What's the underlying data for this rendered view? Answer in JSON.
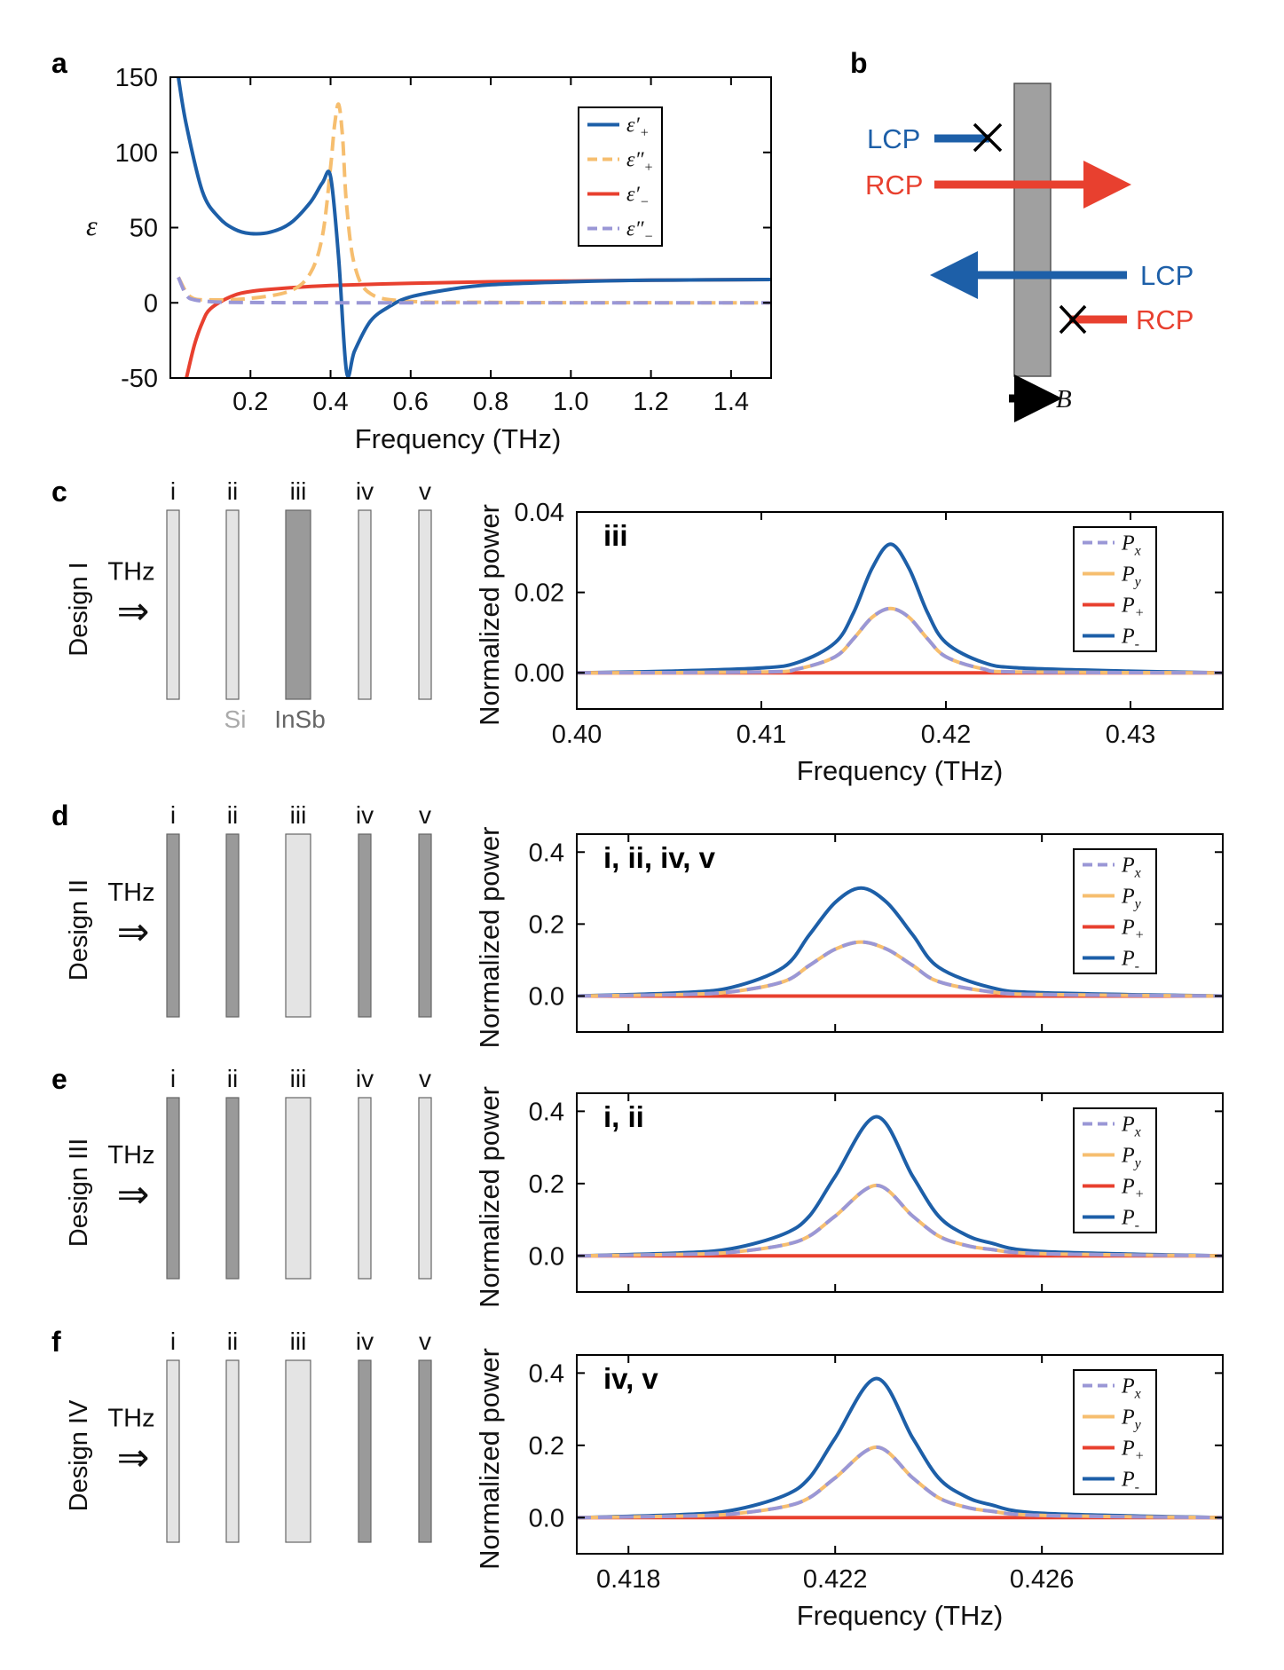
{
  "colors": {
    "blue": "#1d5fa8",
    "orange": "#f6be6f",
    "red": "#e8402f",
    "lavender": "#9a97d6",
    "si": "#e4e4e4",
    "insb": "#9a9a9a",
    "slab_b": "#a0a0a0"
  },
  "panel_a": {
    "letter": "a",
    "xlabel": "Frequency (THz)",
    "ylabel": "ε",
    "xticks": [
      "0.2",
      "0.4",
      "0.6",
      "0.8",
      "1.0",
      "1.2",
      "1.4"
    ],
    "yticks": [
      "150",
      "100",
      "50",
      "0",
      "-50"
    ],
    "legend": [
      {
        "main": "ε′",
        "sub": "+",
        "color": "#1d5fa8",
        "dashed": false
      },
      {
        "main": "ε″",
        "sub": "+",
        "color": "#f6be6f",
        "dashed": true
      },
      {
        "main": "ε′",
        "sub": "−",
        "color": "#e8402f",
        "dashed": false
      },
      {
        "main": "ε″",
        "sub": "−",
        "color": "#9a97d6",
        "dashed": true
      }
    ]
  },
  "panel_b": {
    "letter": "b",
    "lcp": "LCP",
    "rcp": "RCP",
    "field": "B"
  },
  "slabs": {
    "numerals": [
      "i",
      "ii",
      "iii",
      "iv",
      "v"
    ],
    "thz": "THz",
    "arrow": "⇒",
    "si_label": "Si",
    "insb_label": "InSb"
  },
  "rows": [
    {
      "letter": "c",
      "design": "Design I",
      "inset": "iii",
      "materials": [
        "si",
        "si",
        "insb",
        "si",
        "si"
      ]
    },
    {
      "letter": "d",
      "design": "Design II",
      "inset": "i, ii, iv, v",
      "materials": [
        "insb",
        "insb",
        "si",
        "insb",
        "insb"
      ]
    },
    {
      "letter": "e",
      "design": "Design III",
      "inset": "i, ii",
      "materials": [
        "insb",
        "insb",
        "si",
        "si",
        "si"
      ]
    },
    {
      "letter": "f",
      "design": "Design IV",
      "inset": "iv, v",
      "materials": [
        "si",
        "si",
        "si",
        "insb",
        "insb"
      ]
    }
  ],
  "power_axes": {
    "ylabel": "Normalized power",
    "xlabel": "Frequency (THz)",
    "c_xticks": [
      "0.40",
      "0.41",
      "0.42",
      "0.43"
    ],
    "c_yticks": [
      "0.04",
      "0.02",
      "0.00"
    ],
    "def_xticks": [
      "0.418",
      "0.422",
      "0.426"
    ],
    "def_yticks": [
      "0.4",
      "0.2",
      "0.0"
    ],
    "legend": [
      {
        "main": "P",
        "sub": "x",
        "color": "#9a97d6",
        "dashed": true
      },
      {
        "main": "P",
        "sub": "y",
        "color": "#f6be6f",
        "dashed": false
      },
      {
        "main": "P",
        "sub": "+",
        "color": "#e8402f",
        "dashed": false
      },
      {
        "main": "P",
        "sub": "-",
        "color": "#1d5fa8",
        "dashed": false
      }
    ]
  },
  "chart_data": [
    {
      "panel": "a",
      "type": "line",
      "xlabel": "Frequency (THz)",
      "ylabel": "ε",
      "xlim": [
        0.0,
        1.5
      ],
      "ylim": [
        -50,
        150
      ],
      "series": [
        {
          "name": "ε′+",
          "x": [
            0.02,
            0.04,
            0.08,
            0.12,
            0.16,
            0.2,
            0.25,
            0.3,
            0.35,
            0.38,
            0.4,
            0.42,
            0.44,
            0.46,
            0.5,
            0.55,
            0.6,
            0.7,
            0.8,
            1.0,
            1.2,
            1.5
          ],
          "y": [
            150,
            118,
            74,
            57,
            49,
            46,
            47,
            53,
            67,
            80,
            84,
            30,
            -46,
            -32,
            -12,
            -2,
            4,
            9,
            12,
            14,
            15,
            15.5
          ]
        },
        {
          "name": "ε″+",
          "x": [
            0.02,
            0.05,
            0.1,
            0.2,
            0.3,
            0.35,
            0.38,
            0.4,
            0.41,
            0.42,
            0.43,
            0.44,
            0.46,
            0.5,
            0.6,
            0.8,
            1.0,
            1.5
          ],
          "y": [
            17,
            4,
            2,
            3,
            8,
            20,
            45,
            90,
            118,
            132,
            110,
            65,
            25,
            6,
            1,
            0.3,
            0.1,
            0
          ]
        },
        {
          "name": "ε′−",
          "x": [
            0.04,
            0.06,
            0.08,
            0.1,
            0.15,
            0.2,
            0.3,
            0.4,
            0.6,
            0.8,
            1.0,
            1.2,
            1.5
          ],
          "y": [
            -50,
            -28,
            -13,
            -4,
            4,
            7.5,
            10,
            11.5,
            13,
            14,
            14.5,
            15,
            15.5
          ]
        },
        {
          "name": "ε″−",
          "x": [
            0.02,
            0.04,
            0.06,
            0.1,
            0.15,
            0.3,
            0.6,
            1.0,
            1.5
          ],
          "y": [
            17,
            5,
            2,
            0.8,
            0.3,
            0.1,
            0,
            0,
            0
          ]
        }
      ]
    },
    {
      "panel": "c",
      "type": "line",
      "inset": "iii",
      "xlabel": "Frequency (THz)",
      "ylabel": "Normalized power",
      "xlim": [
        0.4,
        0.435
      ],
      "ylim": [
        -0.009,
        0.04
      ],
      "series": [
        {
          "name": "Px",
          "x": [
            0.4,
            0.41,
            0.412,
            0.414,
            0.415,
            0.416,
            0.417,
            0.418,
            0.419,
            0.42,
            0.422,
            0.424,
            0.435
          ],
          "y": [
            0,
            0.0002,
            0.001,
            0.004,
            0.0085,
            0.0138,
            0.016,
            0.0138,
            0.0085,
            0.004,
            0.001,
            0.0002,
            0
          ]
        },
        {
          "name": "Py",
          "x": [
            0.4,
            0.41,
            0.412,
            0.414,
            0.415,
            0.416,
            0.417,
            0.418,
            0.419,
            0.42,
            0.422,
            0.424,
            0.435
          ],
          "y": [
            0,
            0.0002,
            0.001,
            0.004,
            0.0085,
            0.0138,
            0.016,
            0.0138,
            0.0085,
            0.004,
            0.001,
            0.0002,
            0
          ]
        },
        {
          "name": "P+",
          "x": [
            0.4,
            0.435
          ],
          "y": [
            0,
            0
          ]
        },
        {
          "name": "P-",
          "x": [
            0.4,
            0.405,
            0.41,
            0.412,
            0.414,
            0.415,
            0.416,
            0.417,
            0.418,
            0.419,
            0.42,
            0.422,
            0.424,
            0.43,
            0.435
          ],
          "y": [
            0,
            0.0004,
            0.0012,
            0.0026,
            0.0075,
            0.015,
            0.026,
            0.032,
            0.026,
            0.015,
            0.0075,
            0.0026,
            0.0012,
            0.0004,
            0
          ]
        }
      ]
    },
    {
      "panel": "d",
      "type": "line",
      "inset": "i, ii, iv, v",
      "xlabel": "Frequency (THz)",
      "ylabel": "Normalized power",
      "xlim": [
        0.417,
        0.4295
      ],
      "ylim": [
        -0.1,
        0.45
      ],
      "series": [
        {
          "name": "Px",
          "x": [
            0.417,
            0.419,
            0.42,
            0.421,
            0.4215,
            0.422,
            0.4225,
            0.423,
            0.4235,
            0.424,
            0.425,
            0.426,
            0.4295
          ],
          "y": [
            0,
            0.004,
            0.012,
            0.04,
            0.085,
            0.13,
            0.15,
            0.13,
            0.085,
            0.04,
            0.012,
            0.004,
            0
          ]
        },
        {
          "name": "Py",
          "x": [
            0.417,
            0.419,
            0.42,
            0.421,
            0.4215,
            0.422,
            0.4225,
            0.423,
            0.4235,
            0.424,
            0.425,
            0.426,
            0.4295
          ],
          "y": [
            0,
            0.004,
            0.012,
            0.04,
            0.085,
            0.13,
            0.15,
            0.13,
            0.085,
            0.04,
            0.012,
            0.004,
            0
          ]
        },
        {
          "name": "P+",
          "x": [
            0.417,
            0.4295
          ],
          "y": [
            0,
            0
          ]
        },
        {
          "name": "P-",
          "x": [
            0.417,
            0.419,
            0.42,
            0.421,
            0.4215,
            0.422,
            0.4225,
            0.423,
            0.4235,
            0.424,
            0.425,
            0.426,
            0.4295
          ],
          "y": [
            0,
            0.009,
            0.024,
            0.08,
            0.17,
            0.26,
            0.3,
            0.26,
            0.17,
            0.08,
            0.024,
            0.009,
            0
          ]
        }
      ]
    },
    {
      "panel": "e",
      "type": "line",
      "inset": "i, ii",
      "xlabel": "Frequency (THz)",
      "ylabel": "Normalized power",
      "xlim": [
        0.417,
        0.4295
      ],
      "ylim": [
        -0.1,
        0.45
      ],
      "series": [
        {
          "name": "Px",
          "x": [
            0.417,
            0.419,
            0.42,
            0.421,
            0.4215,
            0.422,
            0.4228,
            0.4235,
            0.424,
            0.4245,
            0.425,
            0.426,
            0.4295
          ],
          "y": [
            0,
            0.004,
            0.01,
            0.03,
            0.055,
            0.11,
            0.195,
            0.11,
            0.055,
            0.03,
            0.018,
            0.006,
            0
          ]
        },
        {
          "name": "Py",
          "x": [
            0.417,
            0.419,
            0.42,
            0.421,
            0.4215,
            0.422,
            0.4228,
            0.4235,
            0.424,
            0.4245,
            0.425,
            0.426,
            0.4295
          ],
          "y": [
            0,
            0.004,
            0.01,
            0.03,
            0.055,
            0.11,
            0.195,
            0.11,
            0.055,
            0.03,
            0.018,
            0.006,
            0
          ]
        },
        {
          "name": "P+",
          "x": [
            0.417,
            0.4295
          ],
          "y": [
            0,
            0
          ]
        },
        {
          "name": "P-",
          "x": [
            0.417,
            0.419,
            0.42,
            0.421,
            0.4215,
            0.422,
            0.4228,
            0.4235,
            0.424,
            0.4245,
            0.425,
            0.426,
            0.4295
          ],
          "y": [
            0,
            0.008,
            0.02,
            0.06,
            0.11,
            0.22,
            0.385,
            0.22,
            0.11,
            0.06,
            0.036,
            0.012,
            0
          ]
        }
      ]
    },
    {
      "panel": "f",
      "type": "line",
      "inset": "iv, v",
      "xlabel": "Frequency (THz)",
      "ylabel": "Normalized power",
      "xlim": [
        0.417,
        0.4295
      ],
      "ylim": [
        -0.1,
        0.45
      ],
      "series": [
        {
          "name": "Px",
          "x": [
            0.417,
            0.419,
            0.42,
            0.421,
            0.4215,
            0.422,
            0.4228,
            0.4235,
            0.424,
            0.4245,
            0.425,
            0.426,
            0.4295
          ],
          "y": [
            0,
            0.004,
            0.01,
            0.03,
            0.055,
            0.11,
            0.195,
            0.11,
            0.055,
            0.03,
            0.018,
            0.006,
            0
          ]
        },
        {
          "name": "Py",
          "x": [
            0.417,
            0.419,
            0.42,
            0.421,
            0.4215,
            0.422,
            0.4228,
            0.4235,
            0.424,
            0.4245,
            0.425,
            0.426,
            0.4295
          ],
          "y": [
            0,
            0.004,
            0.01,
            0.03,
            0.055,
            0.11,
            0.195,
            0.11,
            0.055,
            0.03,
            0.018,
            0.006,
            0
          ]
        },
        {
          "name": "P+",
          "x": [
            0.417,
            0.4295
          ],
          "y": [
            0,
            0
          ]
        },
        {
          "name": "P-",
          "x": [
            0.417,
            0.419,
            0.42,
            0.421,
            0.4215,
            0.422,
            0.4228,
            0.4235,
            0.424,
            0.4245,
            0.425,
            0.426,
            0.4295
          ],
          "y": [
            0,
            0.008,
            0.02,
            0.06,
            0.11,
            0.22,
            0.385,
            0.22,
            0.11,
            0.06,
            0.036,
            0.012,
            0
          ]
        }
      ]
    }
  ]
}
